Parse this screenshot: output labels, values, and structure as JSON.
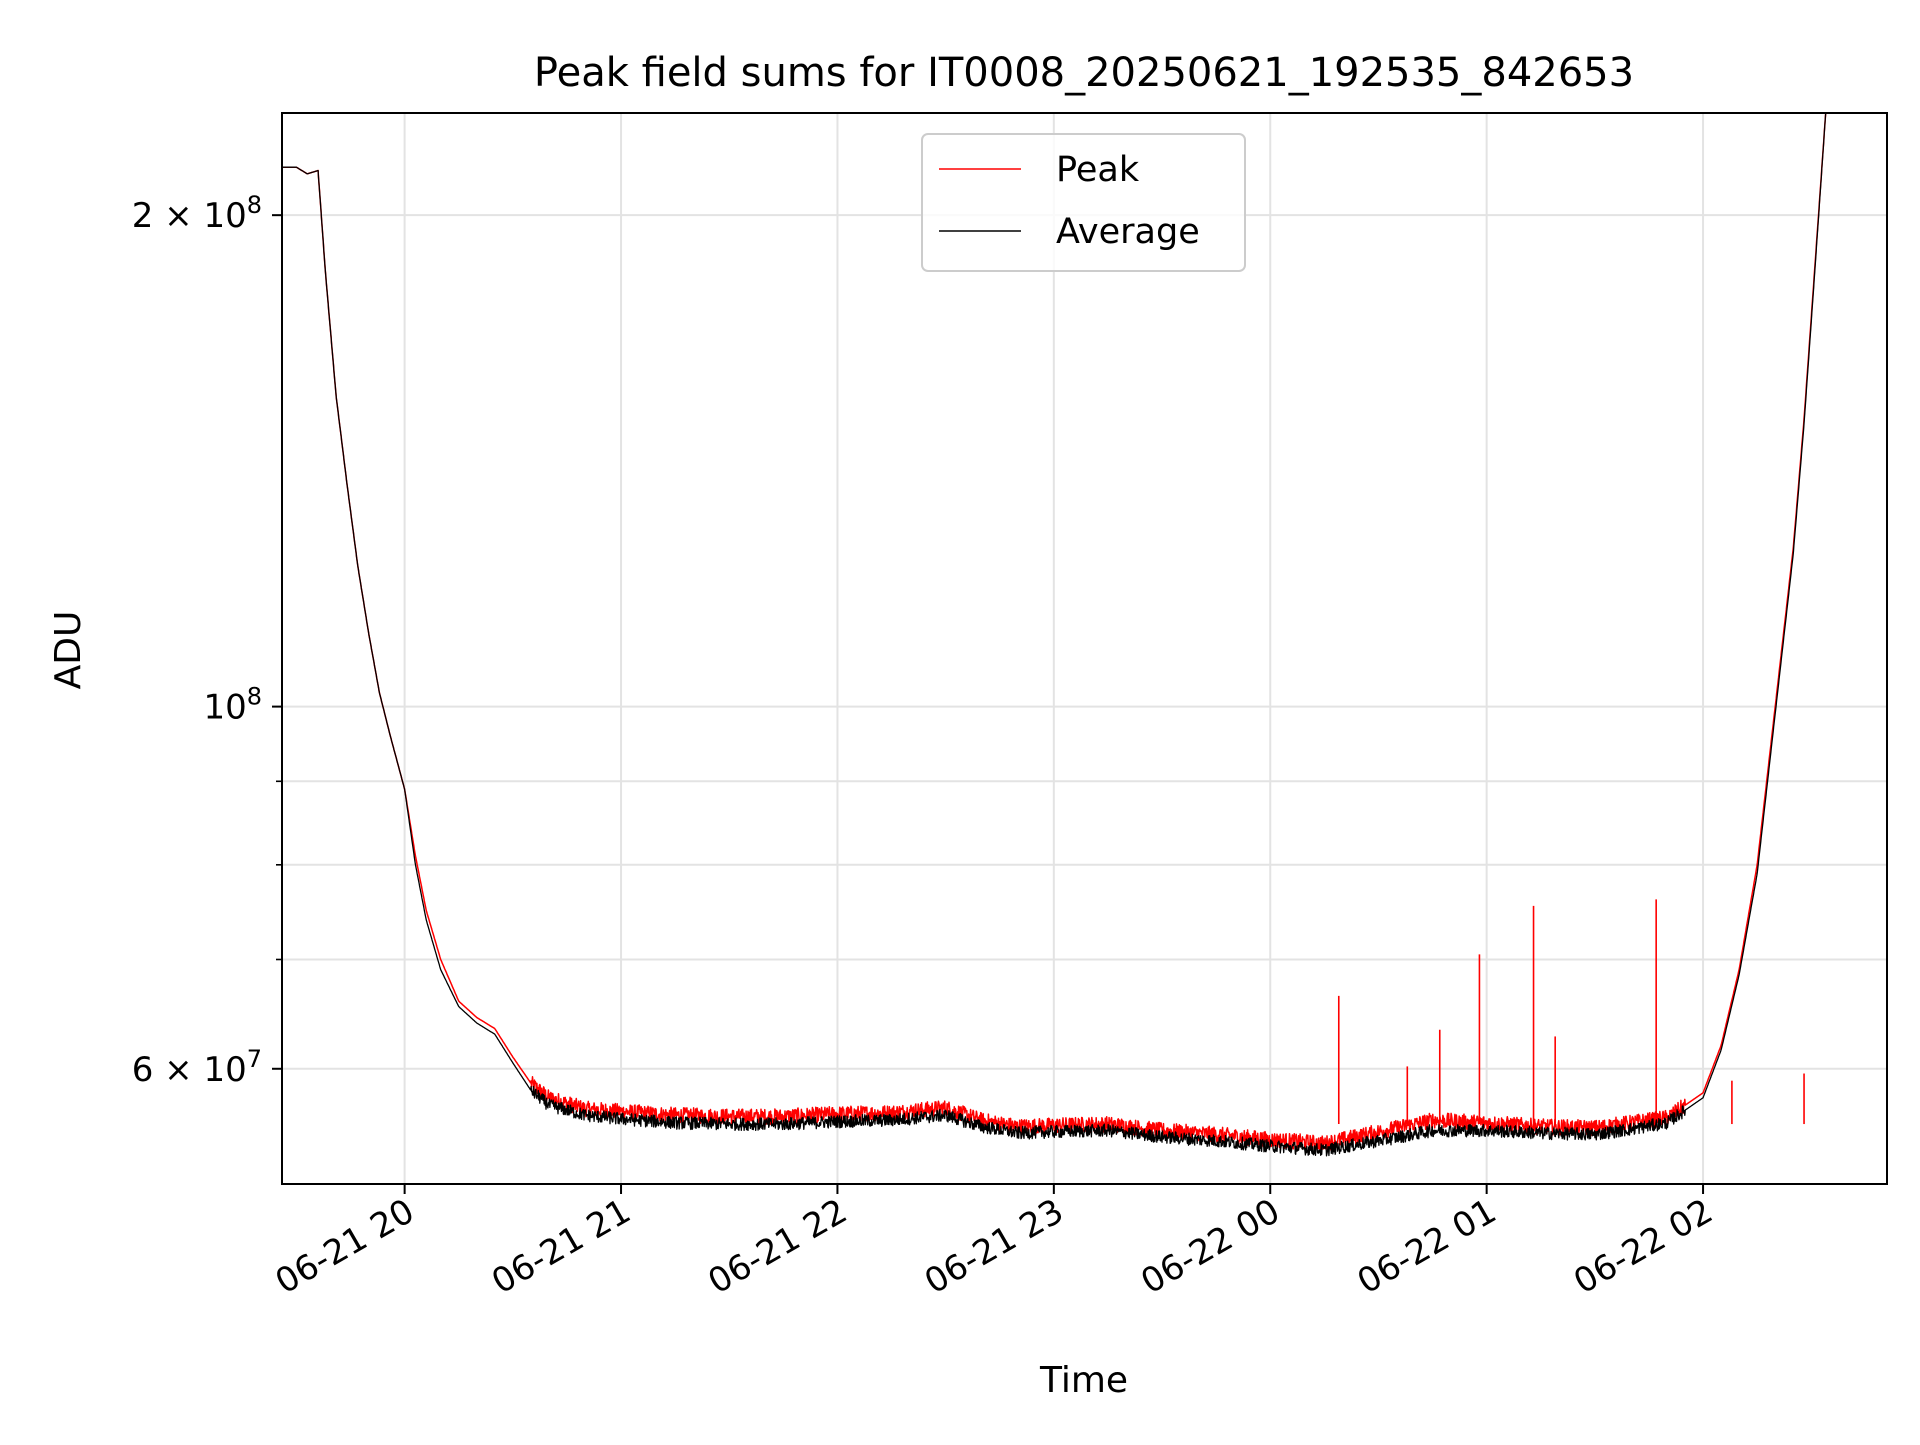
{
  "chart_data": {
    "type": "line",
    "title": "Peak field sums for IT0008_20250621_192535_842653",
    "xlabel": "Time",
    "ylabel": "ADU",
    "y_scale": "log",
    "ylim": [
      51000000,
      231000000
    ],
    "xlim": [
      "2025-06-21 19:26",
      "2025-06-22 02:51"
    ],
    "grid": true,
    "legend_position": "top-center",
    "x_ticks": [
      {
        "value": "2025-06-21 20:00",
        "label": "06-21 20"
      },
      {
        "value": "2025-06-21 21:00",
        "label": "06-21 21"
      },
      {
        "value": "2025-06-21 22:00",
        "label": "06-21 22"
      },
      {
        "value": "2025-06-21 23:00",
        "label": "06-21 23"
      },
      {
        "value": "2025-06-22 00:00",
        "label": "06-22 00"
      },
      {
        "value": "2025-06-22 01:00",
        "label": "06-22 01"
      },
      {
        "value": "2025-06-22 02:00",
        "label": "06-22 02"
      }
    ],
    "y_major_ticks": [
      {
        "value": 60000000,
        "mantissa": "6",
        "exponent": "7"
      },
      {
        "value": 100000000,
        "mantissa": "",
        "exponent": "8"
      },
      {
        "value": 200000000,
        "mantissa": "2",
        "exponent": "8"
      }
    ],
    "y_minor_ticks": [
      70000000,
      80000000,
      90000000
    ],
    "series": [
      {
        "name": "Peak",
        "color": "#ff0000",
        "x": [
          "2025-06-21 19:26",
          "2025-06-21 19:30",
          "2025-06-21 19:33",
          "2025-06-21 19:36",
          "2025-06-21 19:38",
          "2025-06-21 19:41",
          "2025-06-21 19:44",
          "2025-06-21 19:47",
          "2025-06-21 19:50",
          "2025-06-21 19:53",
          "2025-06-21 19:56",
          "2025-06-21 20:00",
          "2025-06-21 20:03",
          "2025-06-21 20:06",
          "2025-06-21 20:10",
          "2025-06-21 20:15",
          "2025-06-21 20:20",
          "2025-06-21 20:25",
          "2025-06-21 20:30",
          "2025-06-21 20:35",
          "2025-06-21 20:40",
          "2025-06-21 20:50",
          "2025-06-21 21:00",
          "2025-06-21 21:15",
          "2025-06-21 21:30",
          "2025-06-21 21:45",
          "2025-06-21 22:00",
          "2025-06-21 22:15",
          "2025-06-21 22:30",
          "2025-06-21 22:40",
          "2025-06-21 22:50",
          "2025-06-21 23:00",
          "2025-06-21 23:15",
          "2025-06-21 23:30",
          "2025-06-21 23:45",
          "2025-06-22 00:00",
          "2025-06-22 00:15",
          "2025-06-22 00:30",
          "2025-06-22 00:45",
          "2025-06-22 01:00",
          "2025-06-22 01:15",
          "2025-06-22 01:30",
          "2025-06-22 01:40",
          "2025-06-22 01:50",
          "2025-06-22 02:00",
          "2025-06-22 02:05",
          "2025-06-22 02:10",
          "2025-06-22 02:15",
          "2025-06-22 02:20",
          "2025-06-22 02:25",
          "2025-06-22 02:28",
          "2025-06-22 02:31",
          "2025-06-22 02:34"
        ],
        "y": [
          214000000,
          214000000,
          212000000,
          213000000,
          185000000,
          155000000,
          137000000,
          122000000,
          111000000,
          102000000,
          96000000,
          89000000,
          81000000,
          75000000,
          70000000,
          66000000,
          64500000,
          63500000,
          61000000,
          58800000,
          57600000,
          56700000,
          56500000,
          56200000,
          56100000,
          56100000,
          56300000,
          56400000,
          56800000,
          55800000,
          55300000,
          55400000,
          55500000,
          55000000,
          54700000,
          54300000,
          54000000,
          54900000,
          55800000,
          55600000,
          55300000,
          55200000,
          55600000,
          56000000,
          58000000,
          62000000,
          69000000,
          80000000,
          100000000,
          125000000,
          150000000,
          186000000,
          231000000
        ],
        "spikes": [
          {
            "x": "2025-06-22 00:19",
            "y": 66500000
          },
          {
            "x": "2025-06-22 00:38",
            "y": 60200000
          },
          {
            "x": "2025-06-22 00:47",
            "y": 63400000
          },
          {
            "x": "2025-06-22 00:58",
            "y": 70500000
          },
          {
            "x": "2025-06-22 01:13",
            "y": 75500000
          },
          {
            "x": "2025-06-22 01:19",
            "y": 62800000
          },
          {
            "x": "2025-06-22 01:47",
            "y": 76200000
          },
          {
            "x": "2025-06-22 02:08",
            "y": 59000000
          },
          {
            "x": "2025-06-22 02:28",
            "y": 59600000
          }
        ]
      },
      {
        "name": "Average",
        "color": "#000000",
        "x": [
          "2025-06-21 19:26",
          "2025-06-21 19:30",
          "2025-06-21 19:33",
          "2025-06-21 19:36",
          "2025-06-21 19:38",
          "2025-06-21 19:41",
          "2025-06-21 19:44",
          "2025-06-21 19:47",
          "2025-06-21 19:50",
          "2025-06-21 19:53",
          "2025-06-21 19:56",
          "2025-06-21 20:00",
          "2025-06-21 20:03",
          "2025-06-21 20:06",
          "2025-06-21 20:10",
          "2025-06-21 20:15",
          "2025-06-21 20:20",
          "2025-06-21 20:25",
          "2025-06-21 20:30",
          "2025-06-21 20:35",
          "2025-06-21 20:40",
          "2025-06-21 20:50",
          "2025-06-21 21:00",
          "2025-06-21 21:15",
          "2025-06-21 21:30",
          "2025-06-21 21:45",
          "2025-06-21 22:00",
          "2025-06-21 22:15",
          "2025-06-21 22:30",
          "2025-06-21 22:40",
          "2025-06-21 22:50",
          "2025-06-21 23:00",
          "2025-06-21 23:15",
          "2025-06-21 23:30",
          "2025-06-21 23:45",
          "2025-06-22 00:00",
          "2025-06-22 00:15",
          "2025-06-22 00:30",
          "2025-06-22 00:45",
          "2025-06-22 01:00",
          "2025-06-22 01:15",
          "2025-06-22 01:30",
          "2025-06-22 01:40",
          "2025-06-22 01:50",
          "2025-06-22 02:00",
          "2025-06-22 02:05",
          "2025-06-22 02:10",
          "2025-06-22 02:15",
          "2025-06-22 02:20",
          "2025-06-22 02:25",
          "2025-06-22 02:28",
          "2025-06-22 02:31",
          "2025-06-22 02:34"
        ],
        "y": [
          214000000,
          214000000,
          212000000,
          213000000,
          185000000,
          155000000,
          137000000,
          122000000,
          111000000,
          102000000,
          96000000,
          89000000,
          80000000,
          74000000,
          69000000,
          65500000,
          64000000,
          63000000,
          60500000,
          58200000,
          57000000,
          56200000,
          55900000,
          55600000,
          55500000,
          55500000,
          55700000,
          55800000,
          56200000,
          55300000,
          54800000,
          54900000,
          55000000,
          54500000,
          54200000,
          53800000,
          53500000,
          54200000,
          55000000,
          55000000,
          54800000,
          54700000,
          55100000,
          55600000,
          57600000,
          61600000,
          68500000,
          79000000,
          99000000,
          124000000,
          149000000,
          185000000,
          231000000
        ]
      }
    ]
  }
}
